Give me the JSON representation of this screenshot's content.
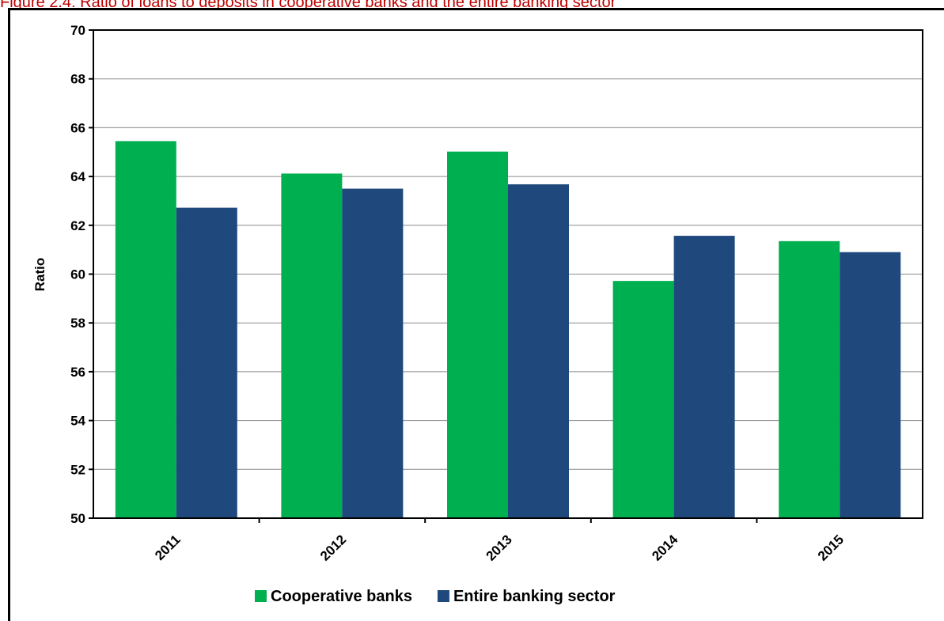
{
  "caption": "Figure 2.4: Ratio of loans to deposits in cooperative banks and the entire banking sector",
  "chart_data": {
    "type": "bar",
    "title": "",
    "xlabel": "",
    "ylabel": "Ratio",
    "ylim": [
      50,
      70
    ],
    "yticks": [
      50,
      52,
      54,
      56,
      58,
      60,
      62,
      64,
      66,
      68,
      70
    ],
    "grid": true,
    "legend_position": "bottom",
    "categories": [
      "2011",
      "2012",
      "2013",
      "2014",
      "2015"
    ],
    "series": [
      {
        "name": "Cooperative banks",
        "color": "#00b050",
        "values": [
          65.45,
          64.12,
          65.02,
          59.72,
          61.35
        ]
      },
      {
        "name": "Entire banking sector",
        "color": "#1f497d",
        "values": [
          62.72,
          63.5,
          63.68,
          61.57,
          60.9
        ]
      }
    ]
  }
}
